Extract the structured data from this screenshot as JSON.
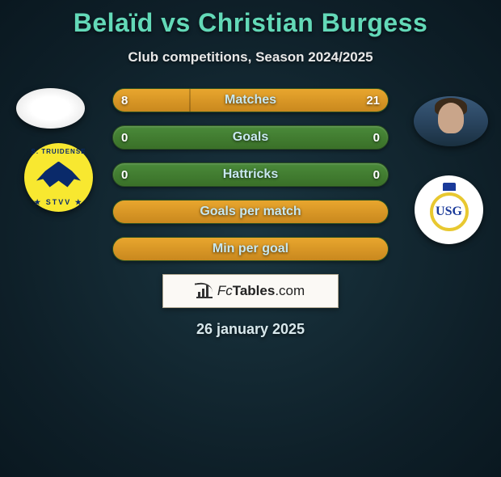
{
  "title": "Belaïd vs Christian Burgess",
  "subtitle": "Club competitions, Season 2024/2025",
  "date": "26 january 2025",
  "brand": {
    "fc": "Fc",
    "tables": "Tables",
    "com": ".com"
  },
  "colors": {
    "accent": "#63d9b8",
    "bar_bg": "#3a7028",
    "bar_fill": "#c9881e",
    "bg_center": "#1a3540",
    "bg_edge": "#0a1820"
  },
  "club_left_top": "S. TRUIDENSE",
  "club_left_bottom": "★ STVV ★",
  "club_right_letters": "USG",
  "bars": [
    {
      "label": "Matches",
      "left": "8",
      "right": "21",
      "left_pct": 28,
      "right_pct": 72,
      "show_vals": true,
      "full_fill": false
    },
    {
      "label": "Goals",
      "left": "0",
      "right": "0",
      "left_pct": 0,
      "right_pct": 0,
      "show_vals": true,
      "full_fill": false
    },
    {
      "label": "Hattricks",
      "left": "0",
      "right": "0",
      "left_pct": 0,
      "right_pct": 0,
      "show_vals": true,
      "full_fill": false
    },
    {
      "label": "Goals per match",
      "left": "",
      "right": "",
      "left_pct": 0,
      "right_pct": 0,
      "show_vals": false,
      "full_fill": true
    },
    {
      "label": "Min per goal",
      "left": "",
      "right": "",
      "left_pct": 0,
      "right_pct": 0,
      "show_vals": false,
      "full_fill": true
    }
  ]
}
